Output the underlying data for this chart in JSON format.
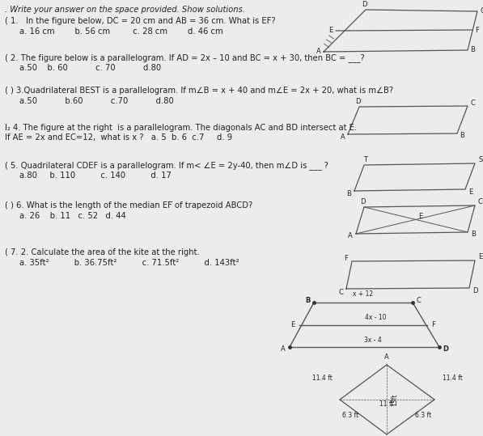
{
  "bg_color": "#eeecea",
  "text_color": "#222222",
  "line_color": "#555555",
  "title": ". Write your answer on the space provided. Show solutions.",
  "q1": "( 1.   In the figure below, DC = 20 cm and AB = 36 cm. What is EF?",
  "q1c": "a. 16 cm        b. 56 cm         c. 28 cm        d. 46 cm",
  "q2": "( 2. The figure below is a parallelogram. If AD = 2x – 10 and BC = x + 30, then BC = ___?",
  "q2c": "a.50    b. 60           c. 70           d.80",
  "q3": "( ) 3.Quadrilateral BEST is a parallelogram. If m∠B = x + 40 and m∠E = 2x + 20, what is m∠B?",
  "q3c": "a.50           b.60           c.70           d.80",
  "q4a": "I₂ 4. The figure at the right  is a parallelogram. The diagonals AC and BD intersect at E.",
  "q4b": "If AE = 2x and EC=12,  what is x ?   a. 5  b. 6  c.7     d. 9",
  "q5": "( 5. Quadrilateral CDEF is a parallelogram. If m< ∠E = 2y-40, then m∠D is ___ ?",
  "q5c": "a.80     b. 110          c. 140          d. 17",
  "q6": "( ) 6. What is the length of the median EF̅ of trapezoid ABCD?",
  "q6c": "a. 26    b. 11   c. 52   d. 44",
  "q7": "( 7. 2. Calculate the area of the kite at the right.",
  "q7c": "a. 35ft²          b. 36.75ft²          c. 71.5ft²          d. 143ft²"
}
